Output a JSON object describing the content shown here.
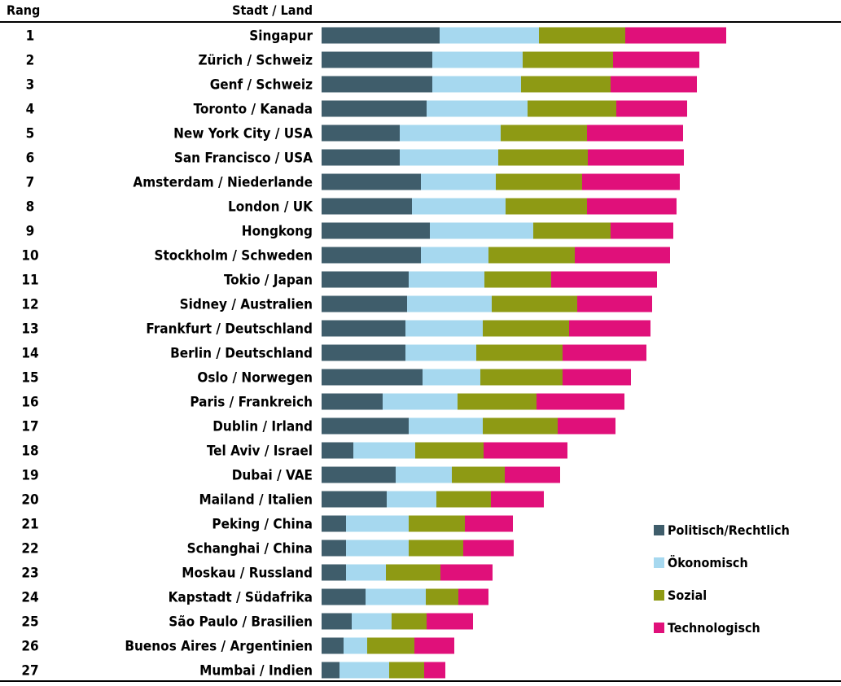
{
  "header": {
    "rank_label": "Rang",
    "city_label": "Stadt / Land"
  },
  "colors": {
    "Politisch/Rechtlich": "#3f5d6b",
    "Ökonomisch": "#a6d8ef",
    "Sozial": "#8e9a14",
    "Technologisch": "#e0107a"
  },
  "chart_data": {
    "type": "bar",
    "orientation": "horizontal",
    "stacked": true,
    "grid": false,
    "legend_position": "bottom-right",
    "title": "",
    "xlabel": "",
    "ylabel": "",
    "ranks": [
      "1",
      "2",
      "3",
      "4",
      "5",
      "6",
      "7",
      "8",
      "9",
      "10",
      "11",
      "12",
      "13",
      "14",
      "15",
      "16",
      "17",
      "18",
      "19",
      "20",
      "21",
      "22",
      "23",
      "24",
      "25",
      "26",
      "27"
    ],
    "categories": [
      "Singapur",
      "Zürich / Schweiz",
      "Genf / Schweiz",
      "Toronto / Kanada",
      "New York City / USA",
      "San Francisco / USA",
      "Amsterdam / Niederlande",
      "London / UK",
      "Hongkong",
      "Stockholm / Schweden",
      "Tokio / Japan",
      "Sidney / Australien",
      "Frankfurt / Deutschland",
      "Berlin / Deutschland",
      "Oslo / Norwegen",
      "Paris / Frankreich",
      "Dublin / Irland",
      "Tel Aviv / Israel",
      "Dubai / VAE",
      "Mailand / Italien",
      "Peking / China",
      "Schanghai / China",
      "Moskau / Russland",
      "Kapstadt / Südafrika",
      "São Paulo / Brasilien",
      "Buenos Aires / Argentinien",
      "Mumbai / Indien"
    ],
    "series": [
      {
        "name": "Politisch/Rechtlich",
        "values": [
          145,
          136,
          136,
          129,
          96,
          96,
          122,
          111,
          133,
          122,
          107,
          105,
          103,
          103,
          124,
          75,
          107,
          39,
          91,
          80,
          30,
          30,
          30,
          54,
          37,
          27,
          22
        ]
      },
      {
        "name": "Ökonomisch",
        "values": [
          122,
          111,
          109,
          124,
          124,
          121,
          92,
          115,
          127,
          83,
          93,
          104,
          95,
          87,
          71,
          92,
          91,
          76,
          69,
          61,
          77,
          77,
          49,
          74,
          49,
          29,
          61
        ]
      },
      {
        "name": "Sozial",
        "values": [
          106,
          111,
          110,
          109,
          106,
          110,
          106,
          100,
          95,
          106,
          82,
          105,
          106,
          106,
          101,
          97,
          92,
          84,
          65,
          67,
          69,
          67,
          67,
          40,
          43,
          58,
          43
        ]
      },
      {
        "name": "Technologisch",
        "values": [
          124,
          106,
          106,
          87,
          118,
          118,
          120,
          110,
          77,
          117,
          130,
          92,
          100,
          103,
          84,
          108,
          71,
          103,
          68,
          65,
          59,
          62,
          64,
          37,
          57,
          49,
          26
        ]
      }
    ]
  }
}
